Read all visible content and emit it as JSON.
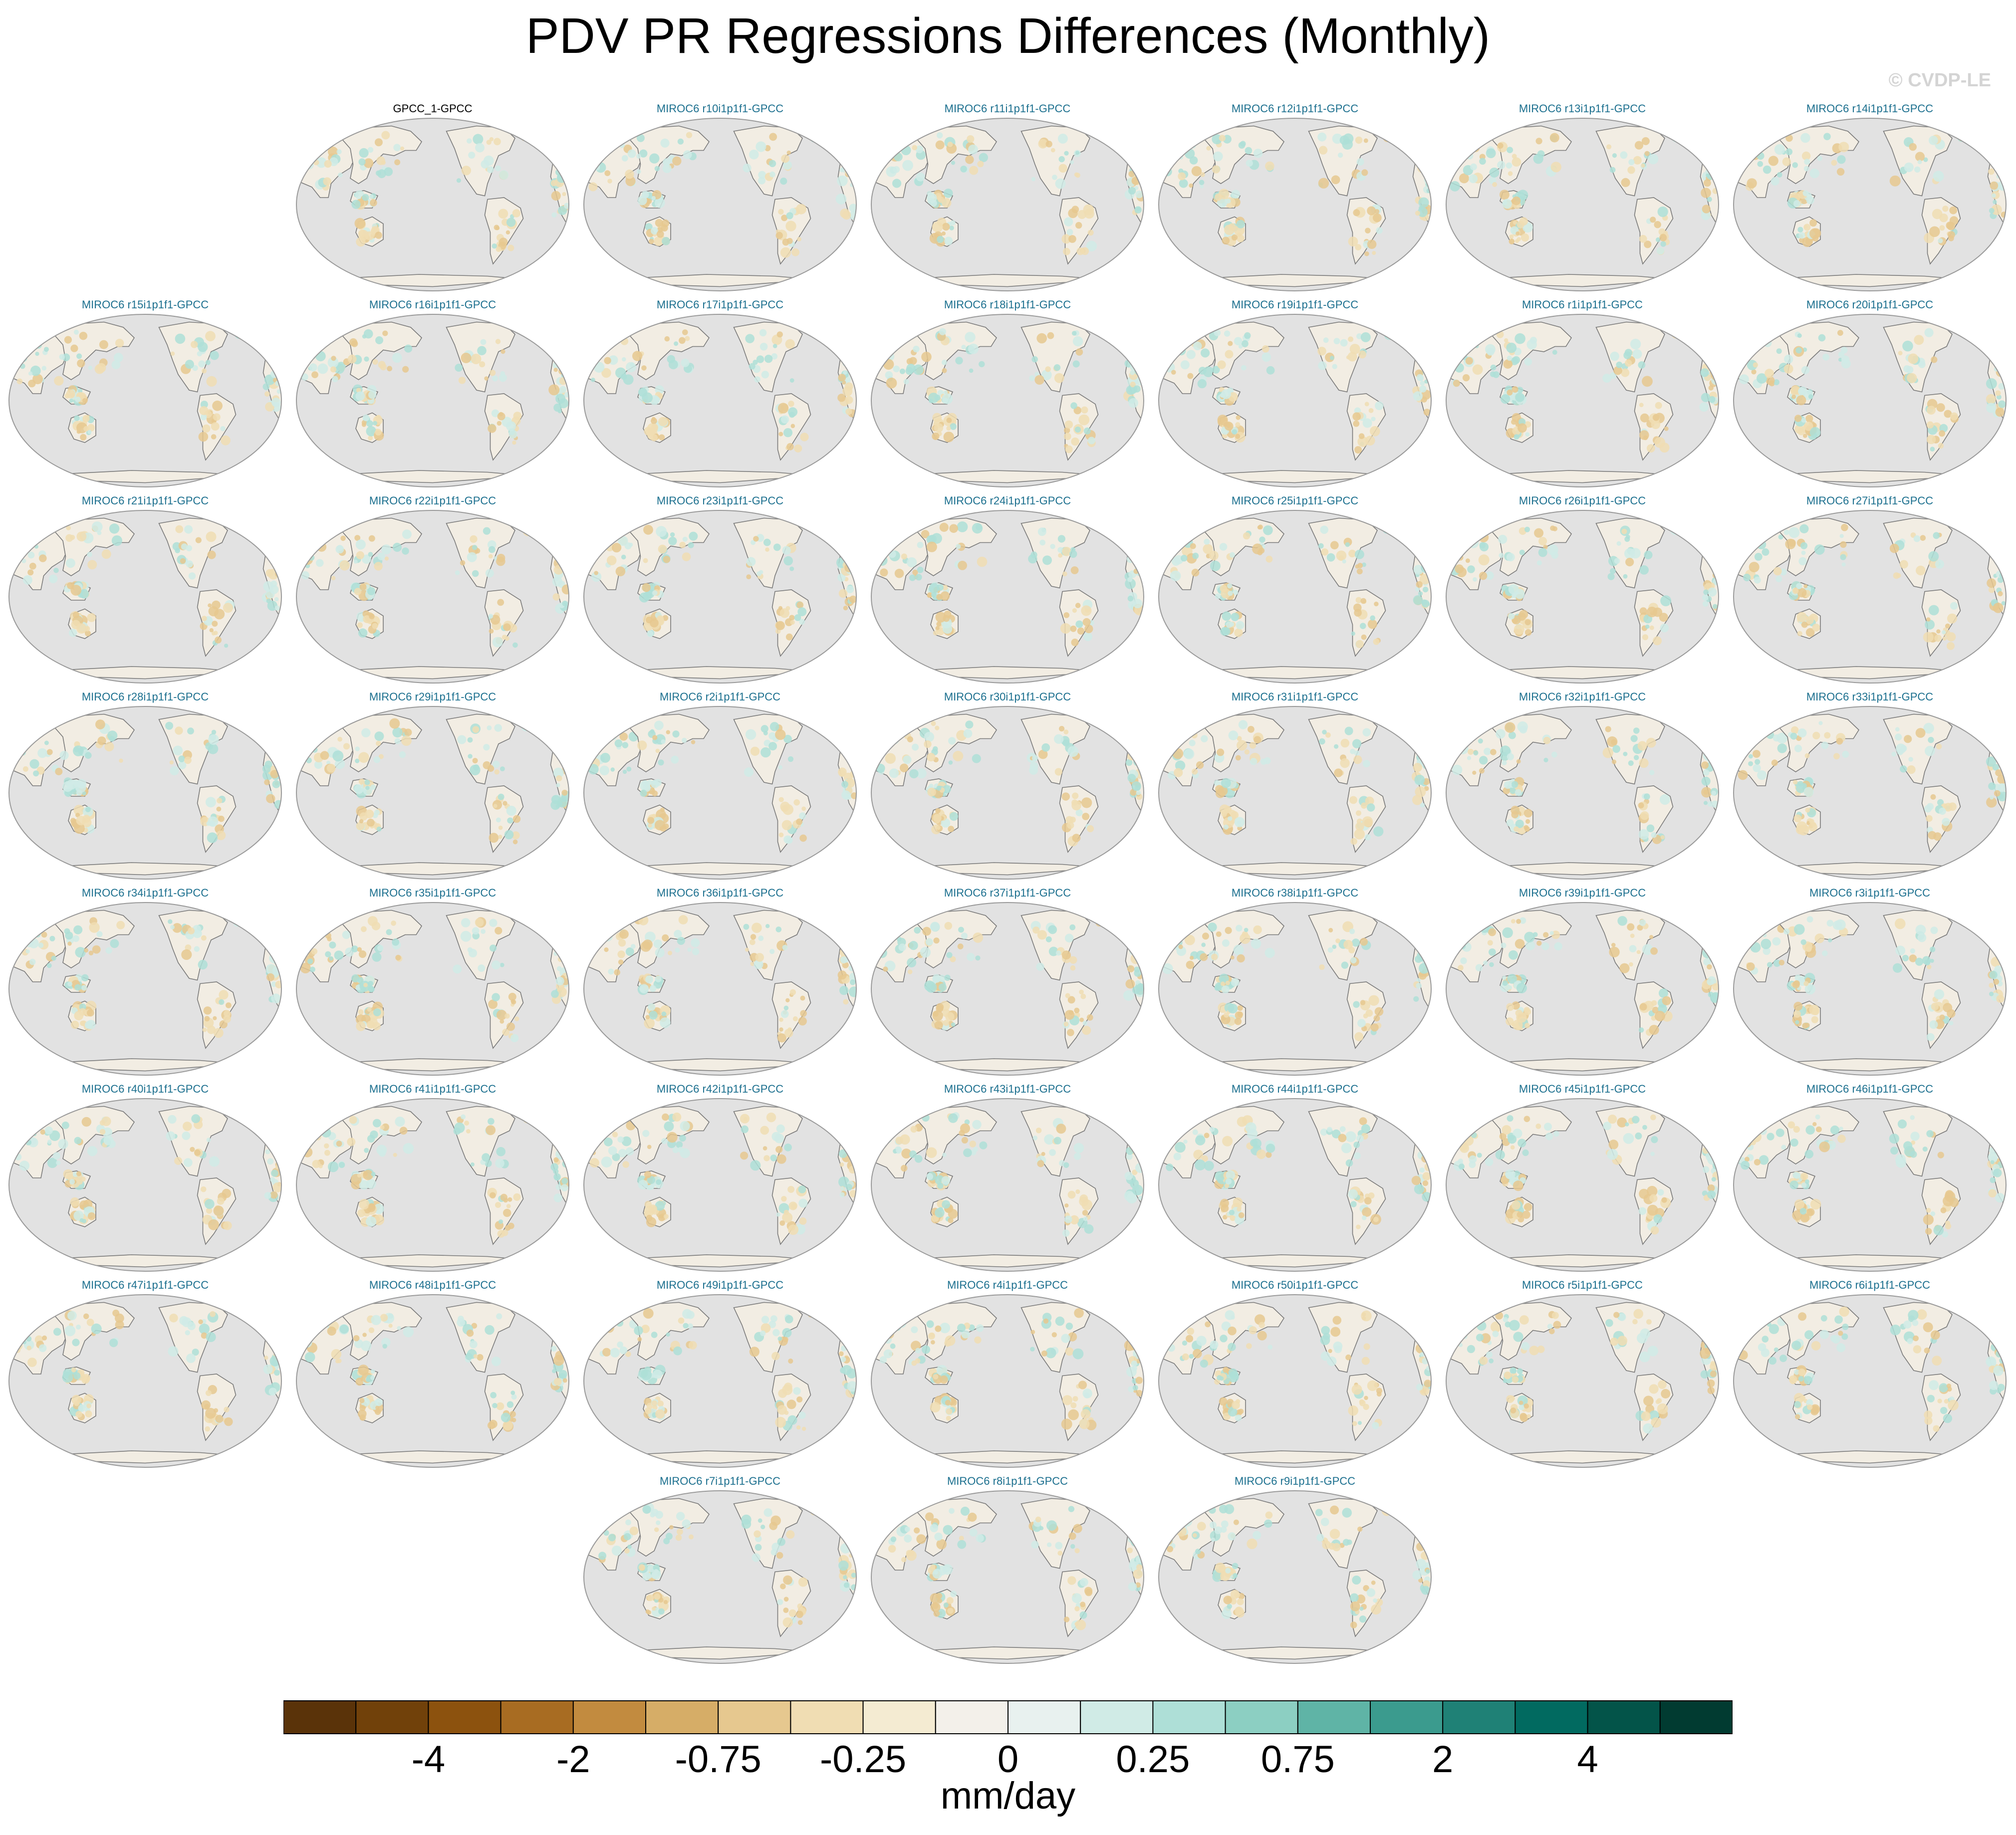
{
  "title": "PDV PR Regressions Differences (Monthly)",
  "watermark": "© CVDP-LE",
  "chart_data": {
    "type": "map-panels",
    "projection": "robinson (Pacific centered)",
    "variable": "PR regression onto PDV, model minus observations",
    "panels": [
      "GPCC_1-GPCC",
      "MIROC6 r10i1p1f1-GPCC",
      "MIROC6 r11i1p1f1-GPCC",
      "MIROC6 r12i1p1f1-GPCC",
      "MIROC6 r13i1p1f1-GPCC",
      "MIROC6 r14i1p1f1-GPCC",
      "MIROC6 r15i1p1f1-GPCC",
      "MIROC6 r16i1p1f1-GPCC",
      "MIROC6 r17i1p1f1-GPCC",
      "MIROC6 r18i1p1f1-GPCC",
      "MIROC6 r19i1p1f1-GPCC",
      "MIROC6 r1i1p1f1-GPCC",
      "MIROC6 r20i1p1f1-GPCC",
      "MIROC6 r21i1p1f1-GPCC",
      "MIROC6 r22i1p1f1-GPCC",
      "MIROC6 r23i1p1f1-GPCC",
      "MIROC6 r24i1p1f1-GPCC",
      "MIROC6 r25i1p1f1-GPCC",
      "MIROC6 r26i1p1f1-GPCC",
      "MIROC6 r27i1p1f1-GPCC",
      "MIROC6 r28i1p1f1-GPCC",
      "MIROC6 r29i1p1f1-GPCC",
      "MIROC6 r2i1p1f1-GPCC",
      "MIROC6 r30i1p1f1-GPCC",
      "MIROC6 r31i1p1f1-GPCC",
      "MIROC6 r32i1p1f1-GPCC",
      "MIROC6 r33i1p1f1-GPCC",
      "MIROC6 r34i1p1f1-GPCC",
      "MIROC6 r35i1p1f1-GPCC",
      "MIROC6 r36i1p1f1-GPCC",
      "MIROC6 r37i1p1f1-GPCC",
      "MIROC6 r38i1p1f1-GPCC",
      "MIROC6 r39i1p1f1-GPCC",
      "MIROC6 r3i1p1f1-GPCC",
      "MIROC6 r40i1p1f1-GPCC",
      "MIROC6 r41i1p1f1-GPCC",
      "MIROC6 r42i1p1f1-GPCC",
      "MIROC6 r43i1p1f1-GPCC",
      "MIROC6 r44i1p1f1-GPCC",
      "MIROC6 r45i1p1f1-GPCC",
      "MIROC6 r46i1p1f1-GPCC",
      "MIROC6 r47i1p1f1-GPCC",
      "MIROC6 r48i1p1f1-GPCC",
      "MIROC6 r49i1p1f1-GPCC",
      "MIROC6 r4i1p1f1-GPCC",
      "MIROC6 r50i1p1f1-GPCC",
      "MIROC6 r5i1p1f1-GPCC",
      "MIROC6 r6i1p1f1-GPCC",
      "MIROC6 r7i1p1f1-GPCC",
      "MIROC6 r8i1p1f1-GPCC",
      "MIROC6 r9i1p1f1-GPCC"
    ],
    "colorbar": {
      "colors": [
        "#5a3309",
        "#71410a",
        "#8c520e",
        "#a86c22",
        "#c28b3f",
        "#d6ad67",
        "#e6c88f",
        "#f0ddb3",
        "#f4ebd2",
        "#f3f0ea",
        "#e8f1ef",
        "#d0ebe6",
        "#aedfd7",
        "#8ccfc2",
        "#5fb4a6",
        "#3b9b8e",
        "#1f8176",
        "#016a60",
        "#035449",
        "#013b31"
      ],
      "tick_labels": [
        "-4",
        "-2",
        "-0.75",
        "-0.25",
        "0",
        "0.25",
        "0.75",
        "2",
        "4"
      ],
      "units": "mm/day"
    }
  }
}
